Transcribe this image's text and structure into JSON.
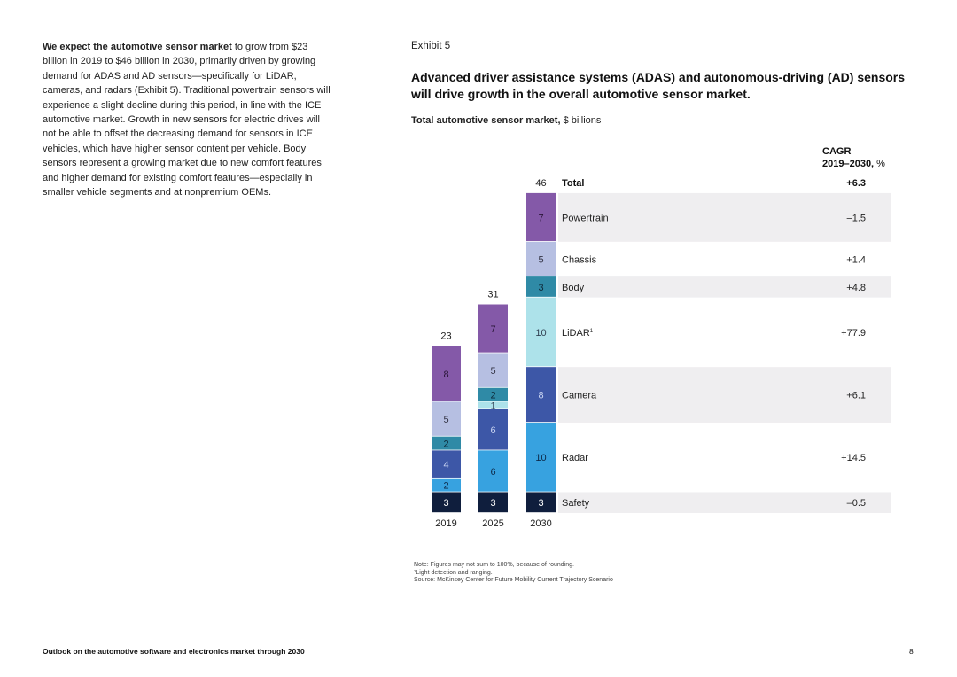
{
  "body_text": {
    "lead": "We expect the automotive sensor market",
    "rest": " to grow from $23 billion in 2019 to $46 billion in 2030, primarily driven by growing demand for ADAS and AD sensors—specifically for LiDAR, cameras, and radars (Exhibit 5). Traditional powertrain sensors will experience a slight decline during this period, in line with the ICE automotive market. Growth in new sensors for electric drives will not be able to offset the decreasing demand for sensors in ICE vehicles, which have higher sensor content per vehicle. Body sensors represent a growing market due to new comfort features and higher demand for existing comfort features—especially in smaller vehicle segments and at nonpremium OEMs."
  },
  "exhibit": {
    "label": "Exhibit 5",
    "title": "Advanced driver assistance systems (ADAS) and autonomous-driving (AD) sensors will drive growth in the overall automotive sensor market.",
    "subtitle_bold": "Total automotive sensor market,",
    "subtitle_rest": " $ billions",
    "cagr_header_bold": "CAGR",
    "cagr_header_line2_bold": "2019–2030,",
    "cagr_header_line2_rest": " %"
  },
  "chart_data": {
    "type": "bar",
    "stacked": true,
    "title": "Total automotive sensor market, $ billions",
    "categories": [
      "2019",
      "2025",
      "2030"
    ],
    "totals": [
      23,
      31,
      46
    ],
    "series": [
      {
        "name": "Safety",
        "values": [
          3,
          3,
          3
        ],
        "color": "#0f1e3d",
        "label_color": "#ffffff",
        "cagr": "–0.5"
      },
      {
        "name": "Radar",
        "values": [
          2,
          6,
          10
        ],
        "color": "#37a2e0",
        "label_color": "#0d2a4a",
        "cagr": "+14.5"
      },
      {
        "name": "Camera",
        "values": [
          4,
          6,
          8
        ],
        "color": "#3d57a7",
        "label_color": "#c9d4f2",
        "cagr": "+6.1"
      },
      {
        "name": "LiDAR",
        "sup": "1",
        "values": [
          0,
          1,
          10
        ],
        "color": "#ade2ea",
        "label_color": "#334455",
        "cagr": "+77.9"
      },
      {
        "name": "Body",
        "values": [
          2,
          2,
          3
        ],
        "color": "#2f8aa6",
        "label_color": "#0d2a3a",
        "cagr": "+4.8"
      },
      {
        "name": "Chassis",
        "values": [
          5,
          5,
          5
        ],
        "color": "#b6bfe2",
        "label_color": "#333344",
        "cagr": "+1.4"
      },
      {
        "name": "Powertrain",
        "values": [
          8,
          7,
          7
        ],
        "color": "#8459a8",
        "label_color": "#2a1638",
        "cagr": "–1.5"
      }
    ],
    "total_row": {
      "name": "Total",
      "cagr": "+6.3"
    },
    "ylim": [
      0,
      46
    ]
  },
  "notes": {
    "line1": "Note: Figures may not sum to 100%, because of rounding.",
    "line2": "¹Light detection and ranging.",
    "line3": "Source: McKinsey Center for Future Mobility Current Trajectory Scenario"
  },
  "footer": {
    "left": "Outlook on the automotive software and electronics market through 2030",
    "page": "8"
  }
}
